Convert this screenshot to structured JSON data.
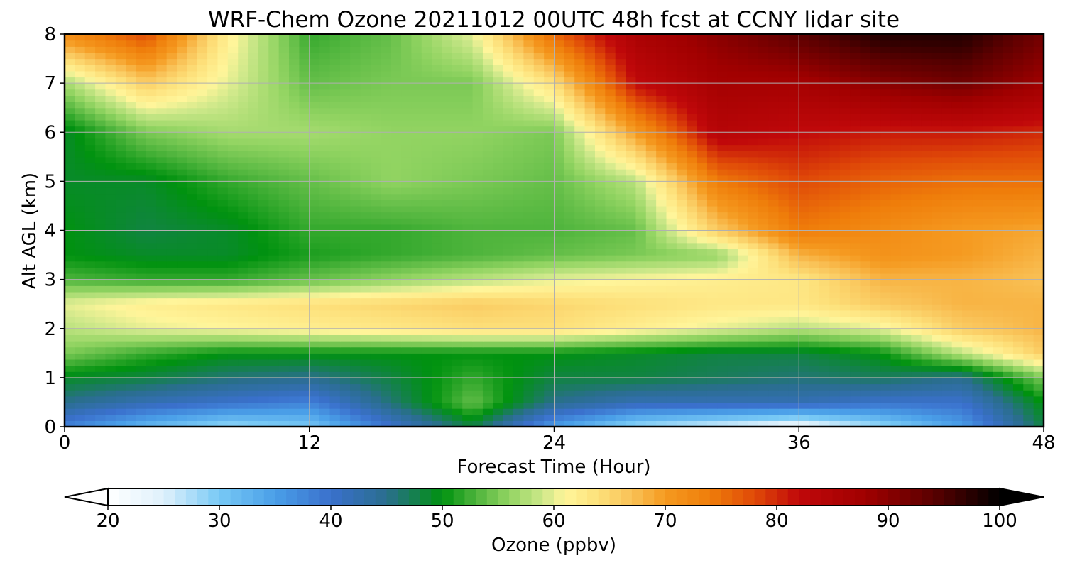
{
  "chart_data": {
    "type": "heatmap",
    "title": "WRF-Chem Ozone  20211012 00UTC 48h fcst at CCNY lidar site",
    "xlabel": "Forecast Time (Hour)",
    "ylabel": "Alt AGL (km)",
    "xlim": [
      0,
      48
    ],
    "ylim": [
      0,
      8
    ],
    "xticks": [
      0,
      12,
      24,
      36,
      48
    ],
    "yticks": [
      0,
      1,
      2,
      3,
      4,
      5,
      6,
      7,
      8
    ],
    "grid": true,
    "z_units": "ppbv",
    "x": [
      0,
      4,
      8,
      12,
      16,
      20,
      24,
      28,
      32,
      36,
      40,
      44,
      48
    ],
    "y": [
      0,
      0.5,
      1,
      1.5,
      2,
      2.5,
      3,
      3.5,
      4,
      5,
      6,
      7,
      8
    ],
    "z": [
      [
        38,
        32,
        28,
        30,
        40,
        48,
        35,
        28,
        25,
        22,
        28,
        35,
        48
      ],
      [
        45,
        42,
        40,
        38,
        46,
        54,
        45,
        42,
        42,
        42,
        40,
        40,
        50
      ],
      [
        49,
        48,
        46,
        45,
        48,
        52,
        48,
        48,
        47,
        46,
        47,
        45,
        55
      ],
      [
        55,
        52,
        50,
        50,
        50,
        50,
        50,
        49,
        48,
        48,
        50,
        58,
        66
      ],
      [
        58,
        60,
        61,
        62,
        63,
        64,
        64,
        62,
        60,
        58,
        60,
        66,
        68
      ],
      [
        60,
        62,
        63,
        64,
        65,
        66,
        65,
        64,
        63,
        63,
        66,
        68,
        68
      ],
      [
        53,
        52,
        52,
        54,
        56,
        58,
        60,
        61,
        62,
        63,
        68,
        68,
        67
      ],
      [
        50,
        49,
        49,
        51,
        52,
        53,
        54,
        55,
        56,
        68,
        71,
        70,
        68
      ],
      [
        50,
        48,
        49,
        52,
        52,
        53,
        53,
        54,
        66,
        74,
        72,
        70,
        69
      ],
      [
        49,
        49,
        52,
        54,
        56,
        55,
        54,
        58,
        74,
        78,
        76,
        75,
        75
      ],
      [
        49,
        55,
        57,
        57,
        56,
        56,
        55,
        70,
        84,
        82,
        81,
        81,
        80
      ],
      [
        57,
        66,
        60,
        54,
        55,
        55,
        64,
        82,
        87,
        87,
        90,
        92,
        88
      ],
      [
        72,
        78,
        62,
        52,
        54,
        60,
        76,
        86,
        90,
        94,
        98,
        98,
        92
      ]
    ],
    "colorbar": {
      "label": "Ozone  (ppbv)",
      "min": 20,
      "max": 100,
      "ticks": [
        20,
        30,
        40,
        50,
        60,
        70,
        80,
        90,
        100
      ],
      "extend": "both",
      "colors": [
        [
          20,
          "#ffffff"
        ],
        [
          25,
          "#dff1fc"
        ],
        [
          30,
          "#78c9f5"
        ],
        [
          35,
          "#4a9fe8"
        ],
        [
          40,
          "#3a70cc"
        ],
        [
          45,
          "#2a6e8e"
        ],
        [
          50,
          "#00920f"
        ],
        [
          53,
          "#4eb43c"
        ],
        [
          56,
          "#92d462"
        ],
        [
          59,
          "#cde88a"
        ],
        [
          61,
          "#fff59a"
        ],
        [
          64,
          "#fde07a"
        ],
        [
          67,
          "#f9c156"
        ],
        [
          70,
          "#f59a20"
        ],
        [
          74,
          "#ef7d0a"
        ],
        [
          78,
          "#e04a08"
        ],
        [
          82,
          "#c0080a"
        ],
        [
          88,
          "#a00000"
        ],
        [
          94,
          "#5a0000"
        ],
        [
          100,
          "#000000"
        ]
      ]
    }
  }
}
